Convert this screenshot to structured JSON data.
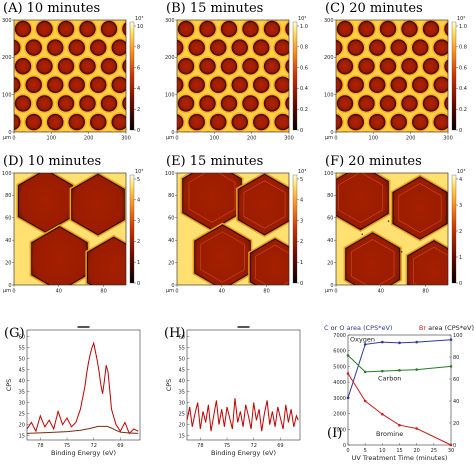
{
  "panels": [
    {
      "id": "A",
      "title": "(A) 10 minutes",
      "type": "afm",
      "pattern": "small-holes",
      "x_ticks": [
        "0",
        "100",
        "200",
        "300"
      ],
      "y_ticks": [
        "0",
        "100",
        "200",
        "300"
      ],
      "unit": "μm",
      "colorbar_ticks": [
        "0",
        "2",
        "4",
        "6",
        "8",
        "10"
      ],
      "colorbar_unit": "10³"
    },
    {
      "id": "B",
      "title": "(B) 15 minutes",
      "type": "afm",
      "pattern": "small-holes",
      "x_ticks": [
        "0",
        "100",
        "200",
        "300"
      ],
      "y_ticks": [
        "0",
        "100",
        "200",
        "300"
      ],
      "unit": "μm",
      "colorbar_ticks": [
        "0",
        "0.2",
        "0.4",
        "0.6",
        "0.8",
        "1.0"
      ],
      "colorbar_unit": "10²"
    },
    {
      "id": "C",
      "title": "(C) 20 minutes",
      "type": "afm",
      "pattern": "small-holes",
      "x_ticks": [
        "0",
        "100",
        "200",
        "300"
      ],
      "y_ticks": [
        "0",
        "100",
        "200",
        "300"
      ],
      "unit": "μm",
      "colorbar_ticks": [
        "0",
        "0.2",
        "0.4",
        "0.6",
        "0.8",
        "1.0"
      ],
      "colorbar_unit": "10²"
    },
    {
      "id": "D",
      "title": "(D) 10 minutes",
      "type": "afm",
      "pattern": "large-hex",
      "x_ticks": [
        "0",
        "40",
        "80"
      ],
      "y_ticks": [
        "0",
        "20",
        "40",
        "60",
        "80",
        "100"
      ],
      "unit": "μm",
      "colorbar_ticks": [
        "0",
        "1",
        "2",
        "3",
        "4",
        "5"
      ],
      "colorbar_unit": "10³"
    },
    {
      "id": "E",
      "title": "(E) 15 minutes",
      "type": "afm",
      "pattern": "large-hex",
      "x_ticks": [
        "0",
        "40",
        "80"
      ],
      "y_ticks": [
        "0",
        "20",
        "40",
        "60",
        "80",
        "100"
      ],
      "unit": "μm",
      "colorbar_ticks": [
        "0",
        "1",
        "2",
        "3",
        "4",
        "5"
      ],
      "colorbar_unit": "10³"
    },
    {
      "id": "F",
      "title": "(F) 20 minutes",
      "type": "afm",
      "pattern": "large-hex",
      "x_ticks": [
        "0",
        "40",
        "80"
      ],
      "y_ticks": [
        "0",
        "20",
        "40",
        "60",
        "80",
        "100"
      ],
      "unit": "μm",
      "colorbar_ticks": [
        "0",
        "1",
        "2",
        "3",
        "4"
      ],
      "colorbar_unit": "10³"
    },
    {
      "id": "G",
      "title": "(G)",
      "type": "chart"
    },
    {
      "id": "H",
      "title": "(H)",
      "type": "chart"
    },
    {
      "id": "I",
      "title": "(I)",
      "type": "chart"
    }
  ],
  "chart_data": [
    {
      "id": "G",
      "type": "line",
      "xlabel": "Binding Energy (eV)",
      "ylabel": "CPS",
      "xlim": [
        79.5,
        66.8
      ],
      "ylim": [
        13,
        63
      ],
      "x_ticks": [
        78,
        75,
        72,
        69
      ],
      "y_ticks": [
        15,
        20,
        25,
        30,
        35,
        40,
        45,
        50,
        55,
        60
      ],
      "series": [
        {
          "color": "#c00000",
          "x": [
            79.5,
            79,
            78.5,
            78,
            77.5,
            77,
            76.5,
            76,
            75.5,
            75,
            74.5,
            74,
            73.5,
            73,
            72.8,
            72.6,
            72.4,
            72.2,
            72,
            71.8,
            71.6,
            71.4,
            71.2,
            71,
            70.8,
            70.6,
            70.4,
            70.2,
            70,
            69.5,
            69,
            68.5,
            68,
            67.5,
            67
          ],
          "y": [
            18,
            21,
            17,
            24,
            19,
            22,
            18,
            26,
            20,
            23,
            19,
            21,
            27,
            37,
            43,
            48,
            52,
            55,
            57,
            53,
            49,
            44,
            38,
            34,
            40,
            47,
            44,
            36,
            27,
            20,
            17,
            21,
            16,
            18,
            17
          ]
        },
        {
          "color": "#7a2a10",
          "x": [
            79.5,
            77,
            75,
            73.5,
            72.5,
            71.5,
            70.5,
            70,
            69.5,
            69,
            68,
            67
          ],
          "y": [
            16,
            16.4,
            16.8,
            17.4,
            18.2,
            19.2,
            19.2,
            18.4,
            17.4,
            16.6,
            16.2,
            16
          ]
        }
      ]
    },
    {
      "id": "H",
      "type": "line",
      "xlabel": "Binding Energy (eV)",
      "ylabel": "CPS",
      "xlim": [
        79.5,
        66.8
      ],
      "ylim": [
        13,
        63
      ],
      "x_ticks": [
        78,
        75,
        72,
        69
      ],
      "y_ticks": [
        15,
        20,
        25,
        30,
        35,
        40,
        45,
        50,
        55,
        60
      ],
      "series": [
        {
          "color": "#c00000",
          "x": [
            79.5,
            79.2,
            78.9,
            78.6,
            78.3,
            78,
            77.7,
            77.4,
            77.1,
            76.8,
            76.5,
            76.2,
            75.9,
            75.6,
            75.3,
            75,
            74.7,
            74.4,
            74.1,
            73.8,
            73.5,
            73.2,
            72.9,
            72.6,
            72.3,
            72,
            71.7,
            71.4,
            71.1,
            70.8,
            70.5,
            70.2,
            69.9,
            69.6,
            69.3,
            69,
            68.7,
            68.4,
            68.1,
            67.8,
            67.5,
            67.2,
            67
          ],
          "y": [
            22,
            28,
            19,
            25,
            30,
            18,
            26,
            21,
            29,
            17,
            24,
            31,
            20,
            27,
            19,
            28,
            23,
            18,
            32,
            21,
            26,
            19,
            29,
            24,
            18,
            30,
            22,
            27,
            17,
            25,
            31,
            20,
            26,
            19,
            28,
            23,
            18,
            29,
            21,
            27,
            19,
            24,
            22
          ]
        }
      ]
    },
    {
      "id": "I",
      "type": "line",
      "title_left": "C or O area (CPS*eV)",
      "title_right": "Br area (CPS*eV)",
      "xlabel": "UV Treatment Time (minutes)",
      "xlim": [
        0,
        30
      ],
      "ylim_left": [
        0,
        7000
      ],
      "ylim_right": [
        0,
        100
      ],
      "x_ticks": [
        0,
        5,
        10,
        15,
        20,
        25,
        30
      ],
      "y_ticks_left": [
        0,
        1000,
        2000,
        3000,
        4000,
        5000,
        6000,
        7000
      ],
      "y_ticks_right": [
        0,
        20,
        40,
        60,
        80,
        100
      ],
      "series": [
        {
          "name": "Oxygen",
          "axis": "left",
          "color": "#2a3a9a",
          "x": [
            0,
            5,
            10,
            15,
            20,
            30
          ],
          "y": [
            3000,
            6400,
            6550,
            6500,
            6550,
            6700
          ]
        },
        {
          "name": "Carbon",
          "axis": "left",
          "color": "#2a7a2a",
          "x": [
            0,
            5,
            10,
            15,
            20,
            30
          ],
          "y": [
            5700,
            4650,
            4700,
            4750,
            4800,
            5000
          ]
        },
        {
          "name": "Bromine",
          "axis": "right",
          "color": "#c82020",
          "x": [
            0,
            5,
            10,
            15,
            20,
            30
          ],
          "y": [
            65,
            40,
            28,
            18,
            15,
            0
          ]
        }
      ]
    }
  ]
}
